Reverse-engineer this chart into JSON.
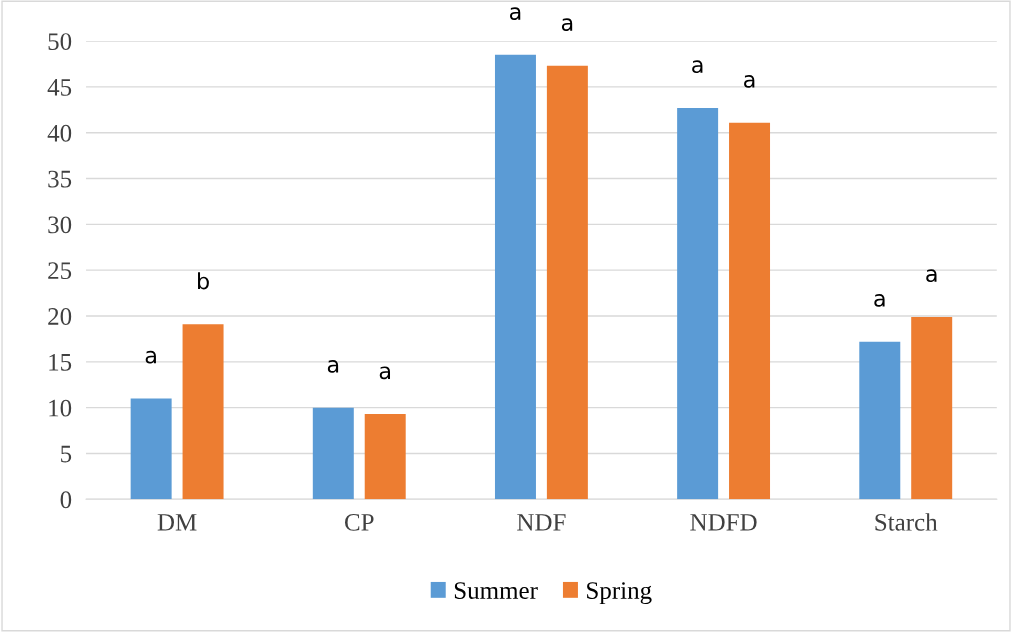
{
  "chart_data": {
    "type": "bar",
    "categories": [
      "DM",
      "CP",
      "NDF",
      "NDFD",
      "Starch"
    ],
    "series": [
      {
        "name": "Summer",
        "color": "#5b9bd5",
        "values": [
          11.0,
          10.0,
          48.5,
          42.7,
          17.2
        ],
        "value_labels": [
          "a",
          "a",
          "a",
          "a",
          "a"
        ]
      },
      {
        "name": "Spring",
        "color": "#ed7d31",
        "values": [
          19.1,
          9.3,
          47.3,
          41.1,
          19.9
        ],
        "value_labels": [
          "b",
          "a",
          "a",
          "a",
          "a"
        ]
      }
    ],
    "ylim": [
      0,
      50
    ],
    "yticks": [
      0,
      5,
      10,
      15,
      20,
      25,
      30,
      35,
      40,
      45,
      50
    ],
    "grid": "y",
    "legend": "bottom"
  }
}
